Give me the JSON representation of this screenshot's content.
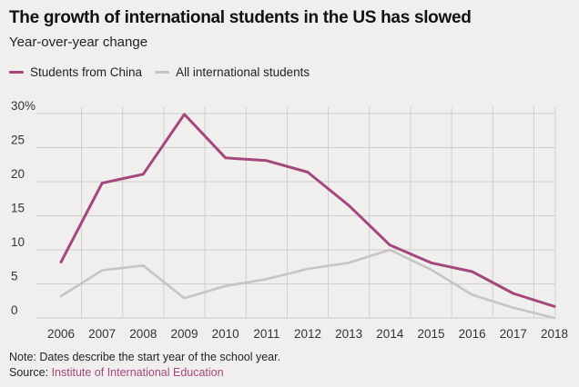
{
  "chart_data": {
    "type": "line",
    "title": "The growth of international students in the US has slowed",
    "subtitle": "Year-over-year change",
    "xlabel": "",
    "ylabel": "",
    "ylim": [
      0,
      30
    ],
    "grid": true,
    "y_ticks": [
      "0",
      "5",
      "10",
      "15",
      "20",
      "25",
      "30%"
    ],
    "y_tick_values": [
      0,
      5,
      10,
      15,
      20,
      25,
      30
    ],
    "x": [
      "2006",
      "2007",
      "2008",
      "2009",
      "2010",
      "2011",
      "2012",
      "2013",
      "2014",
      "2015",
      "2016",
      "2017",
      "2018"
    ],
    "series": [
      {
        "name": "Students from China",
        "color": "#a3487d",
        "values": [
          8.2,
          19.8,
          21.1,
          29.9,
          23.5,
          23.1,
          21.4,
          16.5,
          10.7,
          8.1,
          6.8,
          3.6,
          1.7
        ]
      },
      {
        "name": "All international students",
        "color": "#c6c5c3",
        "values": [
          3.2,
          7.0,
          7.7,
          2.9,
          4.7,
          5.7,
          7.2,
          8.1,
          10.0,
          7.1,
          3.4,
          1.5,
          0.0
        ]
      }
    ],
    "legend": "top-left"
  },
  "footer": {
    "note": "Note: Dates describe the start year of the school year.",
    "source_prefix": "Source: ",
    "source_name": "Institute of International Education"
  }
}
